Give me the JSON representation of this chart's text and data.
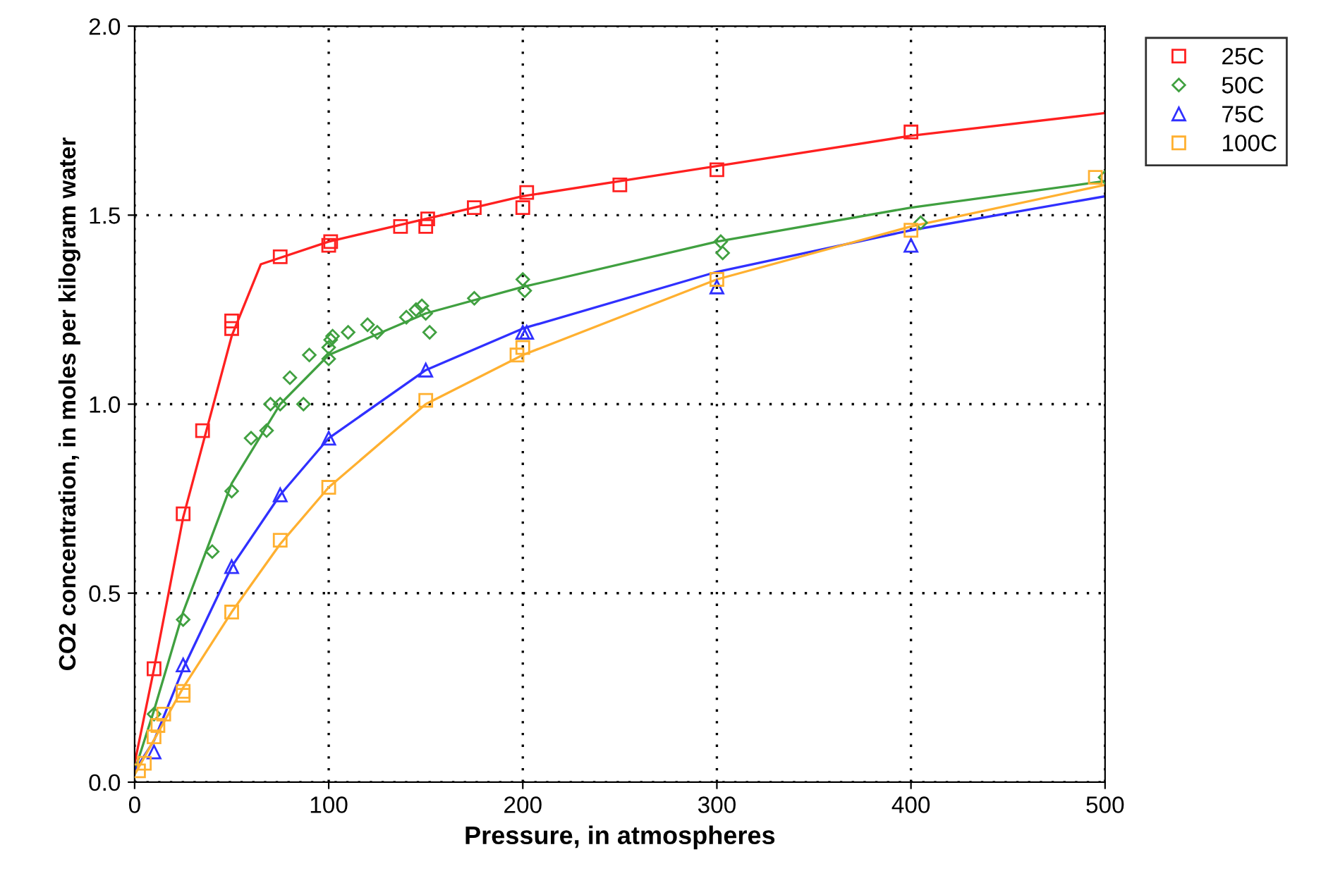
{
  "chart_data": {
    "type": "scatter",
    "xlabel": "Pressure, in atmospheres",
    "ylabel": "CO2 concentration, in moles per kilogram water",
    "xlim": [
      0,
      500
    ],
    "ylim": [
      0,
      2.0
    ],
    "xticks": [
      0,
      100,
      200,
      300,
      400,
      500
    ],
    "yticks": [
      {
        "value": 0,
        "label": "0.0"
      },
      0.5,
      {
        "value": 1,
        "label": "1.0"
      },
      1.5,
      {
        "value": 2,
        "label": "2.0"
      }
    ],
    "grid": true,
    "legend": "top right",
    "series": [
      {
        "name": "25C",
        "marker": "square",
        "color": "#ff2020",
        "x": [
          10,
          25,
          35,
          50,
          50,
          75,
          100,
          101,
          137,
          150,
          151,
          175,
          200,
          202,
          250,
          300,
          400
        ],
        "values": [
          0.3,
          0.71,
          0.93,
          1.2,
          1.22,
          1.39,
          1.42,
          1.43,
          1.47,
          1.47,
          1.49,
          1.52,
          1.52,
          1.56,
          1.58,
          1.62,
          1.72
        ]
      },
      {
        "name": "50C",
        "marker": "diamond",
        "color": "#40a040",
        "x": [
          10,
          25,
          40,
          50,
          60,
          68,
          70,
          75,
          80,
          87,
          90,
          100,
          100,
          101,
          102,
          110,
          120,
          125,
          140,
          145,
          148,
          150,
          152,
          175,
          200,
          201,
          302,
          303,
          405,
          500
        ],
        "values": [
          0.18,
          0.43,
          0.61,
          0.77,
          0.91,
          0.93,
          1.0,
          1.0,
          1.07,
          1.0,
          1.13,
          1.12,
          1.15,
          1.17,
          1.18,
          1.19,
          1.21,
          1.19,
          1.23,
          1.25,
          1.26,
          1.24,
          1.19,
          1.28,
          1.33,
          1.3,
          1.43,
          1.4,
          1.48,
          1.6
        ]
      },
      {
        "name": "75C",
        "marker": "triangle",
        "color": "#3030ff",
        "x": [
          10,
          25,
          50,
          75,
          100,
          150,
          200,
          202,
          300,
          400
        ],
        "values": [
          0.08,
          0.31,
          0.57,
          0.76,
          0.91,
          1.09,
          1.19,
          1.19,
          1.31,
          1.42
        ]
      },
      {
        "name": "100C",
        "marker": "square",
        "color": "#ffb030",
        "x": [
          2,
          5,
          10,
          12,
          15,
          25,
          25,
          50,
          75,
          100,
          150,
          197,
          200,
          300,
          400,
          495
        ],
        "values": [
          0.03,
          0.05,
          0.12,
          0.15,
          0.18,
          0.23,
          0.24,
          0.45,
          0.64,
          0.78,
          1.01,
          1.13,
          1.15,
          1.33,
          1.46,
          1.6
        ]
      },
      {
        "type": "line",
        "marker": "none",
        "color": "#ff2020",
        "x": [
          0,
          10,
          25,
          50,
          65,
          100,
          150,
          200,
          300,
          400,
          500
        ],
        "values": [
          0.05,
          0.3,
          0.7,
          1.18,
          1.37,
          1.43,
          1.49,
          1.55,
          1.63,
          1.71,
          1.77
        ]
      },
      {
        "type": "line",
        "marker": "none",
        "color": "#40a040",
        "x": [
          0,
          10,
          25,
          50,
          75,
          100,
          150,
          200,
          300,
          400,
          500
        ],
        "values": [
          0.03,
          0.19,
          0.45,
          0.79,
          1.0,
          1.13,
          1.24,
          1.31,
          1.43,
          1.52,
          1.59
        ]
      },
      {
        "type": "line",
        "marker": "none",
        "color": "#3030ff",
        "x": [
          0,
          10,
          25,
          50,
          75,
          100,
          150,
          200,
          300,
          400,
          500
        ],
        "values": [
          0.03,
          0.11,
          0.3,
          0.57,
          0.76,
          0.91,
          1.09,
          1.2,
          1.35,
          1.46,
          1.55
        ]
      },
      {
        "type": "line",
        "marker": "none",
        "color": "#ffb030",
        "x": [
          0,
          25,
          50,
          75,
          100,
          150,
          200,
          300,
          400,
          500
        ],
        "values": [
          0.02,
          0.25,
          0.45,
          0.63,
          0.78,
          1.0,
          1.13,
          1.33,
          1.47,
          1.58
        ]
      }
    ]
  }
}
